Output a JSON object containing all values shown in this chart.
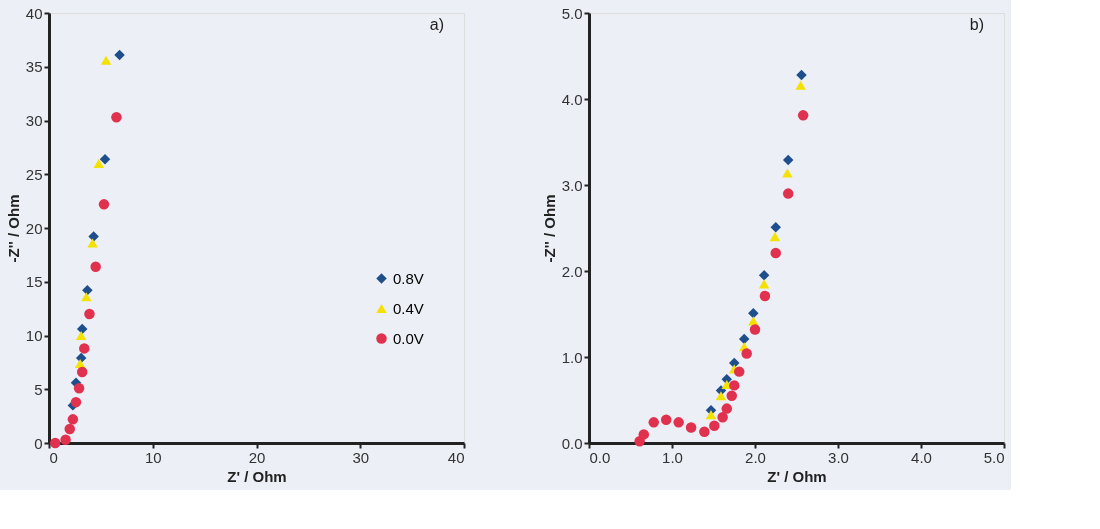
{
  "chart_data": [
    {
      "type": "scatter",
      "xlabel": "Z' / Ohm",
      "ylabel": "-Z'' / Ohm",
      "annotations": [
        "a)"
      ],
      "xlim": [
        0,
        40
      ],
      "ylim": [
        0,
        40
      ],
      "xticks": [
        0,
        10,
        20,
        30,
        40
      ],
      "yticks": [
        0,
        5,
        10,
        15,
        20,
        25,
        30,
        35,
        40
      ],
      "grid": false,
      "legend": "right",
      "series": [
        {
          "name": "0.8V",
          "color": "#1f4e8c",
          "marker": "diamond",
          "x": [
            2.3,
            2.6,
            3.1,
            3.2,
            3.7,
            4.3,
            5.4,
            6.8
          ],
          "values": [
            3.5,
            5.6,
            7.9,
            10.6,
            14.2,
            19.2,
            26.4,
            36.1
          ]
        },
        {
          "name": "0.4V",
          "color": "#f5e100",
          "marker": "triangle",
          "x": [
            3.0,
            3.1,
            3.6,
            4.2,
            4.8,
            5.5
          ],
          "values": [
            7.4,
            10.0,
            13.6,
            18.6,
            26.0,
            35.6
          ]
        },
        {
          "name": "0.0V",
          "color": "#e0314f",
          "marker": "circle",
          "x": [
            0.6,
            1.6,
            2.0,
            2.3,
            2.6,
            2.9,
            3.2,
            3.4,
            3.9,
            4.5,
            5.3,
            6.5
          ],
          "values": [
            0.0,
            0.3,
            1.3,
            2.2,
            3.8,
            5.1,
            6.6,
            8.8,
            12.0,
            16.4,
            22.2,
            30.3
          ]
        }
      ]
    },
    {
      "type": "scatter",
      "xlabel": "Z' / Ohm",
      "ylabel": "-Z'' / Ohm",
      "annotations": [
        "b)"
      ],
      "xlim": [
        0,
        5
      ],
      "ylim": [
        0,
        5
      ],
      "xticks": [
        {
          "value": 0,
          "label": "0.0"
        },
        {
          "value": 1,
          "label": "1.0"
        },
        {
          "value": 2,
          "label": "2.0"
        },
        {
          "value": 3,
          "label": "3.0"
        },
        {
          "value": 4,
          "label": "4.0"
        },
        {
          "value": 5,
          "label": "5.0"
        }
      ],
      "yticks": [
        {
          "value": 0,
          "label": "0.0"
        },
        {
          "value": 1,
          "label": "1.0"
        },
        {
          "value": 2,
          "label": "2.0"
        },
        {
          "value": 3,
          "label": "3.0"
        },
        {
          "value": 4,
          "label": "4.0"
        },
        {
          "value": 5,
          "label": "5.0"
        }
      ],
      "grid": false,
      "legend": "right",
      "series": [
        {
          "name": "0.8V",
          "color": "#1f4e8c",
          "marker": "diamond",
          "x": [
            1.47,
            1.59,
            1.66,
            1.75,
            1.87,
            1.98,
            2.11,
            2.25,
            2.4,
            2.56
          ],
          "values": [
            0.38,
            0.61,
            0.74,
            0.93,
            1.21,
            1.51,
            1.95,
            2.51,
            3.29,
            4.28
          ]
        },
        {
          "name": "0.4V",
          "color": "#f5e100",
          "marker": "triangle",
          "x": [
            1.47,
            1.59,
            1.66,
            1.75,
            1.87,
            1.98,
            2.11,
            2.24,
            2.39,
            2.55
          ],
          "values": [
            0.33,
            0.55,
            0.68,
            0.86,
            1.12,
            1.42,
            1.85,
            2.4,
            3.14,
            4.16
          ]
        },
        {
          "name": "0.0V",
          "color": "#e0314f",
          "marker": "circle",
          "x": [
            0.61,
            0.66,
            0.78,
            0.93,
            1.08,
            1.23,
            1.39,
            1.51,
            1.61,
            1.66,
            1.72,
            1.75,
            1.81,
            1.9,
            2.0,
            2.12,
            2.25,
            2.4,
            2.58
          ],
          "values": [
            0.02,
            0.1,
            0.24,
            0.27,
            0.24,
            0.18,
            0.13,
            0.2,
            0.3,
            0.4,
            0.55,
            0.67,
            0.83,
            1.04,
            1.32,
            1.71,
            2.21,
            2.9,
            3.81
          ]
        }
      ]
    }
  ]
}
